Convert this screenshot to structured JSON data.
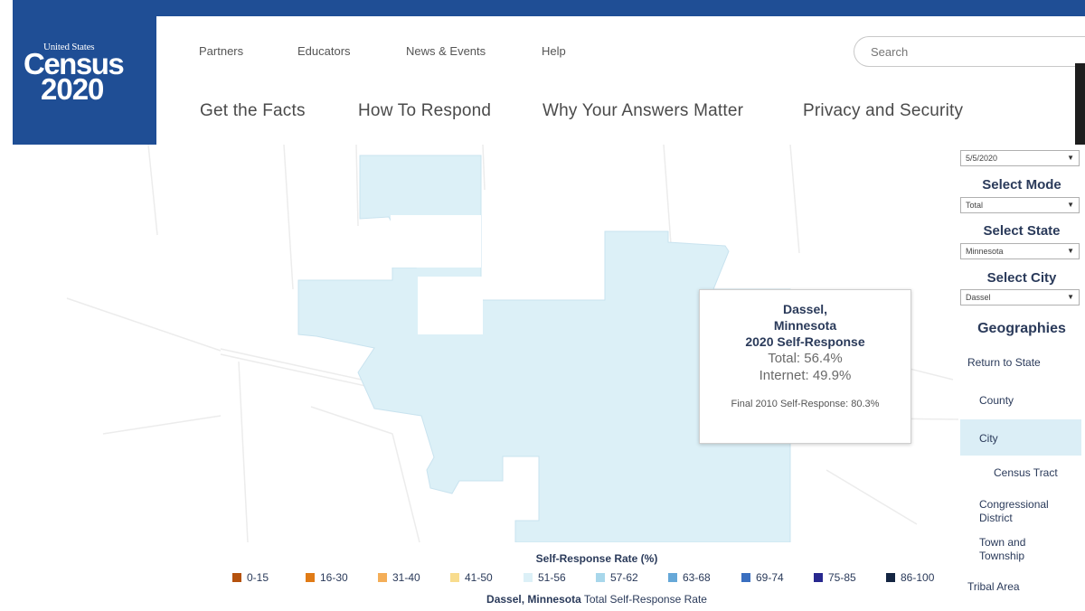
{
  "logo": {
    "line1": "United States",
    "line2": "Census",
    "line3": "2020"
  },
  "util_nav": [
    "Partners",
    "Educators",
    "News & Events",
    "Help"
  ],
  "main_nav": [
    "Get the Facts",
    "How To Respond",
    "Why Your Answers Matter",
    "Privacy and Security"
  ],
  "search": {
    "placeholder": "Search"
  },
  "date_select": {
    "value": "5/5/2020"
  },
  "mode": {
    "label": "Select Mode",
    "value": "Total"
  },
  "state": {
    "label": "Select State",
    "value": "Minnesota"
  },
  "city": {
    "label": "Select City",
    "value": "Dassel"
  },
  "geographies": {
    "title": "Geographies",
    "items": [
      "Return to State",
      "County",
      "City",
      "Census Tract",
      "Congressional District",
      "Town and Township",
      "Tribal Area"
    ],
    "active": "City"
  },
  "tooltip": {
    "place_line1": "Dassel,",
    "place_line2": "Minnesota",
    "heading": "2020 Self-Response",
    "total": "Total: 56.4%",
    "internet": "Internet: 49.9%",
    "final_2010": "Final 2010 Self-Response: 80.3%"
  },
  "legend": {
    "title": "Self-Response Rate (%)",
    "items": [
      {
        "label": "0-15",
        "color": "#b5520e"
      },
      {
        "label": "16-30",
        "color": "#e07b16"
      },
      {
        "label": "31-40",
        "color": "#f4ae58"
      },
      {
        "label": "41-50",
        "color": "#f8dc8e"
      },
      {
        "label": "51-56",
        "color": "#dcf0f7"
      },
      {
        "label": "57-62",
        "color": "#a8d7eb"
      },
      {
        "label": "63-68",
        "color": "#66a8d8"
      },
      {
        "label": "69-74",
        "color": "#3a6fc0"
      },
      {
        "label": "75-85",
        "color": "#28288f"
      },
      {
        "label": "86-100",
        "color": "#142542"
      }
    ],
    "caption_place": "Dassel, Minnesota",
    "caption_rest": "Total Self-Response Rate"
  },
  "colors": {
    "brand": "#1f4e95",
    "city_fill": "#dcf0f7",
    "active_bg": "#dbeef6"
  }
}
